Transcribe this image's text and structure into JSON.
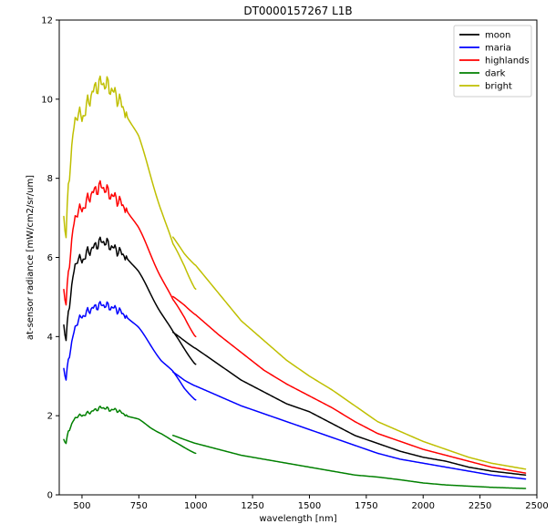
{
  "chart_data": {
    "type": "line",
    "title": "DT0000157267 L1B",
    "xlabel": "wavelength [nm]",
    "ylabel": "at-sensor radiance [mW/cm2/sr/um]",
    "xlim": [
      400,
      2500
    ],
    "ylim": [
      0,
      12
    ],
    "xticks": [
      500,
      750,
      1000,
      1250,
      1500,
      1750,
      2000,
      2250,
      2500
    ],
    "yticks": [
      0,
      2,
      4,
      6,
      8,
      10,
      12
    ],
    "grid": false,
    "legend_position": "top-right",
    "series": [
      {
        "name": "moon",
        "color": "#000000",
        "segments": [
          [
            [
              420,
              4.3
            ],
            [
              430,
              3.9
            ],
            [
              440,
              4.6
            ],
            [
              460,
              5.5
            ],
            [
              480,
              6.0
            ],
            [
              500,
              5.9
            ],
            [
              520,
              6.1
            ],
            [
              540,
              6.2
            ],
            [
              560,
              6.3
            ],
            [
              580,
              6.4
            ],
            [
              600,
              6.4
            ],
            [
              620,
              6.3
            ],
            [
              650,
              6.2
            ],
            [
              700,
              6.0
            ],
            [
              750,
              5.6
            ],
            [
              800,
              5.1
            ],
            [
              850,
              4.6
            ],
            [
              900,
              4.1
            ],
            [
              950,
              3.7
            ],
            [
              1000,
              3.3
            ]
          ],
          [
            [
              900,
              4.1
            ],
            [
              950,
              3.9
            ],
            [
              1000,
              3.7
            ],
            [
              1100,
              3.3
            ],
            [
              1200,
              2.9
            ],
            [
              1300,
              2.6
            ],
            [
              1400,
              2.3
            ],
            [
              1500,
              2.1
            ],
            [
              1600,
              1.8
            ],
            [
              1700,
              1.5
            ],
            [
              1800,
              1.3
            ],
            [
              1900,
              1.1
            ],
            [
              2000,
              0.95
            ],
            [
              2100,
              0.85
            ],
            [
              2200,
              0.7
            ],
            [
              2300,
              0.6
            ],
            [
              2450,
              0.5
            ]
          ]
        ]
      },
      {
        "name": "maria",
        "color": "#0000ff",
        "segments": [
          [
            [
              420,
              3.2
            ],
            [
              430,
              2.9
            ],
            [
              440,
              3.4
            ],
            [
              460,
              4.0
            ],
            [
              480,
              4.4
            ],
            [
              500,
              4.5
            ],
            [
              520,
              4.6
            ],
            [
              540,
              4.7
            ],
            [
              560,
              4.75
            ],
            [
              580,
              4.8
            ],
            [
              600,
              4.8
            ],
            [
              620,
              4.75
            ],
            [
              650,
              4.7
            ],
            [
              700,
              4.5
            ],
            [
              750,
              4.2
            ],
            [
              800,
              3.8
            ],
            [
              850,
              3.4
            ],
            [
              900,
              3.1
            ],
            [
              950,
              2.7
            ],
            [
              1000,
              2.4
            ]
          ],
          [
            [
              900,
              3.1
            ],
            [
              950,
              2.9
            ],
            [
              1000,
              2.75
            ],
            [
              1100,
              2.5
            ],
            [
              1200,
              2.25
            ],
            [
              1300,
              2.05
            ],
            [
              1400,
              1.85
            ],
            [
              1500,
              1.65
            ],
            [
              1600,
              1.45
            ],
            [
              1700,
              1.25
            ],
            [
              1800,
              1.05
            ],
            [
              1900,
              0.9
            ],
            [
              2000,
              0.8
            ],
            [
              2100,
              0.7
            ],
            [
              2200,
              0.6
            ],
            [
              2300,
              0.5
            ],
            [
              2450,
              0.4
            ]
          ]
        ]
      },
      {
        "name": "highlands",
        "color": "#ff0000",
        "segments": [
          [
            [
              420,
              5.2
            ],
            [
              430,
              4.8
            ],
            [
              440,
              5.6
            ],
            [
              460,
              6.7
            ],
            [
              480,
              7.2
            ],
            [
              500,
              7.2
            ],
            [
              520,
              7.4
            ],
            [
              540,
              7.6
            ],
            [
              560,
              7.7
            ],
            [
              580,
              7.8
            ],
            [
              600,
              7.75
            ],
            [
              620,
              7.6
            ],
            [
              650,
              7.5
            ],
            [
              700,
              7.2
            ],
            [
              750,
              6.7
            ],
            [
              800,
              6.1
            ],
            [
              850,
              5.5
            ],
            [
              900,
              4.9
            ],
            [
              950,
              4.5
            ],
            [
              1000,
              4.0
            ]
          ],
          [
            [
              900,
              5.0
            ],
            [
              950,
              4.8
            ],
            [
              1000,
              4.55
            ],
            [
              1100,
              4.05
            ],
            [
              1200,
              3.6
            ],
            [
              1300,
              3.15
            ],
            [
              1400,
              2.8
            ],
            [
              1500,
              2.5
            ],
            [
              1600,
              2.2
            ],
            [
              1700,
              1.85
            ],
            [
              1800,
              1.55
            ],
            [
              1900,
              1.35
            ],
            [
              2000,
              1.15
            ],
            [
              2100,
              1.0
            ],
            [
              2200,
              0.85
            ],
            [
              2300,
              0.7
            ],
            [
              2450,
              0.55
            ]
          ]
        ]
      },
      {
        "name": "dark",
        "color": "#008000",
        "segments": [
          [
            [
              420,
              1.4
            ],
            [
              430,
              1.3
            ],
            [
              440,
              1.6
            ],
            [
              460,
              1.85
            ],
            [
              480,
              2.0
            ],
            [
              500,
              2.0
            ],
            [
              520,
              2.05
            ],
            [
              540,
              2.1
            ],
            [
              560,
              2.15
            ],
            [
              580,
              2.2
            ],
            [
              600,
              2.2
            ],
            [
              620,
              2.15
            ],
            [
              650,
              2.15
            ],
            [
              700,
              2.0
            ],
            [
              750,
              1.9
            ],
            [
              800,
              1.7
            ],
            [
              850,
              1.55
            ],
            [
              900,
              1.35
            ],
            [
              950,
              1.2
            ],
            [
              1000,
              1.05
            ]
          ],
          [
            [
              900,
              1.5
            ],
            [
              950,
              1.4
            ],
            [
              1000,
              1.3
            ],
            [
              1100,
              1.15
            ],
            [
              1200,
              1.0
            ],
            [
              1300,
              0.9
            ],
            [
              1400,
              0.8
            ],
            [
              1500,
              0.7
            ],
            [
              1600,
              0.6
            ],
            [
              1700,
              0.5
            ],
            [
              1800,
              0.45
            ],
            [
              1900,
              0.38
            ],
            [
              2000,
              0.3
            ],
            [
              2100,
              0.25
            ],
            [
              2200,
              0.22
            ],
            [
              2300,
              0.19
            ],
            [
              2450,
              0.16
            ]
          ]
        ]
      },
      {
        "name": "bright",
        "color": "#bfbf00",
        "segments": [
          [
            [
              420,
              7.05
            ],
            [
              430,
              6.5
            ],
            [
              440,
              7.8
            ],
            [
              460,
              9.1
            ],
            [
              480,
              9.7
            ],
            [
              500,
              9.5
            ],
            [
              520,
              9.8
            ],
            [
              540,
              10.1
            ],
            [
              560,
              10.3
            ],
            [
              580,
              10.4
            ],
            [
              600,
              10.4
            ],
            [
              620,
              10.3
            ],
            [
              650,
              10.1
            ],
            [
              700,
              9.6
            ],
            [
              750,
              9.0
            ],
            [
              800,
              8.1
            ],
            [
              850,
              7.2
            ],
            [
              900,
              6.3
            ],
            [
              950,
              5.8
            ],
            [
              1000,
              5.2
            ]
          ],
          [
            [
              900,
              6.5
            ],
            [
              950,
              6.1
            ],
            [
              1000,
              5.8
            ],
            [
              1100,
              5.1
            ],
            [
              1200,
              4.4
            ],
            [
              1300,
              3.9
            ],
            [
              1400,
              3.4
            ],
            [
              1500,
              3.0
            ],
            [
              1600,
              2.65
            ],
            [
              1700,
              2.25
            ],
            [
              1800,
              1.85
            ],
            [
              1900,
              1.6
            ],
            [
              2000,
              1.35
            ],
            [
              2100,
              1.15
            ],
            [
              2200,
              0.95
            ],
            [
              2300,
              0.8
            ],
            [
              2450,
              0.65
            ]
          ]
        ]
      }
    ]
  }
}
